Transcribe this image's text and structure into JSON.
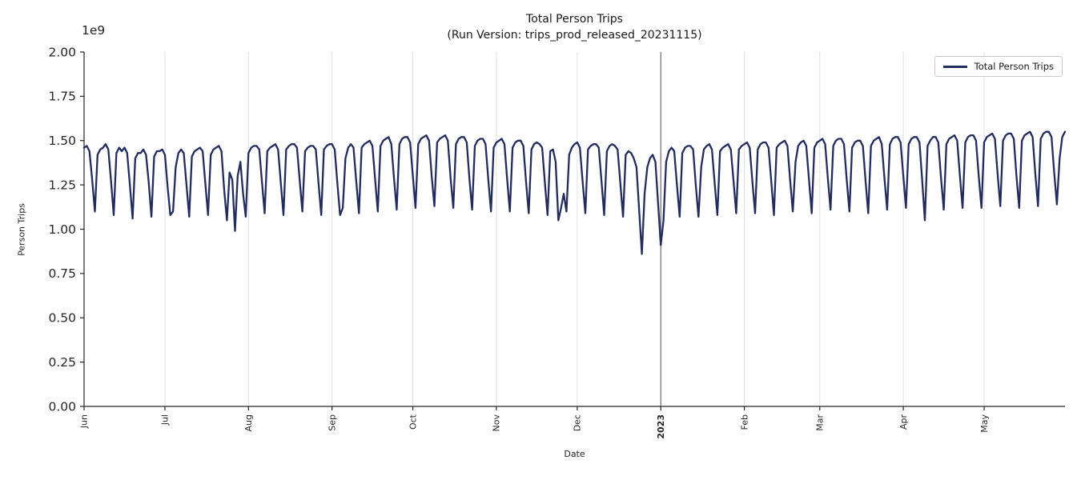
{
  "colors": {
    "line": "#232c5e",
    "grid": "#e0e0e0",
    "year_line": "#4a4a4a",
    "axis": "#262626",
    "legend_border": "#c9c9c9",
    "background": "#ffffff"
  },
  "chart_data": {
    "type": "line",
    "title": "Total Person Trips",
    "subtitle": "(Run Version: trips_prod_released_20231115)",
    "xlabel": "Date",
    "ylabel": "Person Trips",
    "y_scale_offset_label": "1e9",
    "ylim_1e9": [
      0.0,
      2.0
    ],
    "yticks_1e9": [
      0.0,
      0.25,
      0.5,
      0.75,
      1.0,
      1.25,
      1.5,
      1.75,
      2.0
    ],
    "ytick_labels": [
      "0.00",
      "0.25",
      "0.50",
      "0.75",
      "1.00",
      "1.25",
      "1.50",
      "1.75",
      "2.00"
    ],
    "x_start": "2022-06-01",
    "x_unit": "day",
    "grid": "vertical-month-lines",
    "xticks": [
      {
        "label": "Jun",
        "day": 0
      },
      {
        "label": "Jul",
        "day": 30
      },
      {
        "label": "Aug",
        "day": 61
      },
      {
        "label": "Sep",
        "day": 92
      },
      {
        "label": "Oct",
        "day": 122
      },
      {
        "label": "Nov",
        "day": 153
      },
      {
        "label": "Dec",
        "day": 183
      },
      {
        "label": "2023",
        "day": 214,
        "bold": true,
        "year_boundary": true
      },
      {
        "label": "Feb",
        "day": 245
      },
      {
        "label": "Mar",
        "day": 273
      },
      {
        "label": "Apr",
        "day": 304
      },
      {
        "label": "May",
        "day": 334
      }
    ],
    "legend": {
      "position": "upper-right",
      "entries": [
        {
          "label": "Total Person Trips",
          "color": "#232c5e"
        }
      ]
    },
    "series": [
      {
        "name": "Total Person Trips",
        "color": "#232c5e",
        "line_width": 2.3,
        "values_1e9": [
          1.46,
          1.47,
          1.44,
          1.28,
          1.1,
          1.42,
          1.45,
          1.46,
          1.48,
          1.45,
          1.27,
          1.08,
          1.43,
          1.46,
          1.44,
          1.46,
          1.43,
          1.25,
          1.06,
          1.4,
          1.43,
          1.43,
          1.45,
          1.42,
          1.26,
          1.07,
          1.41,
          1.44,
          1.44,
          1.45,
          1.42,
          1.24,
          1.08,
          1.1,
          1.35,
          1.43,
          1.45,
          1.43,
          1.25,
          1.07,
          1.41,
          1.44,
          1.45,
          1.46,
          1.44,
          1.26,
          1.08,
          1.42,
          1.45,
          1.46,
          1.47,
          1.44,
          1.22,
          1.05,
          1.32,
          1.28,
          0.99,
          1.3,
          1.38,
          1.2,
          1.07,
          1.43,
          1.46,
          1.47,
          1.47,
          1.45,
          1.27,
          1.09,
          1.44,
          1.46,
          1.47,
          1.48,
          1.45,
          1.26,
          1.08,
          1.45,
          1.47,
          1.48,
          1.48,
          1.46,
          1.28,
          1.1,
          1.44,
          1.46,
          1.47,
          1.47,
          1.45,
          1.26,
          1.08,
          1.45,
          1.47,
          1.48,
          1.48,
          1.45,
          1.26,
          1.08,
          1.12,
          1.4,
          1.46,
          1.48,
          1.46,
          1.27,
          1.09,
          1.46,
          1.48,
          1.49,
          1.5,
          1.47,
          1.28,
          1.1,
          1.47,
          1.5,
          1.51,
          1.52,
          1.48,
          1.29,
          1.11,
          1.48,
          1.51,
          1.52,
          1.52,
          1.49,
          1.3,
          1.12,
          1.48,
          1.51,
          1.52,
          1.53,
          1.5,
          1.3,
          1.13,
          1.49,
          1.51,
          1.52,
          1.53,
          1.5,
          1.29,
          1.12,
          1.48,
          1.51,
          1.52,
          1.52,
          1.49,
          1.28,
          1.11,
          1.47,
          1.5,
          1.51,
          1.51,
          1.48,
          1.28,
          1.1,
          1.46,
          1.49,
          1.5,
          1.51,
          1.48,
          1.28,
          1.1,
          1.46,
          1.49,
          1.5,
          1.5,
          1.47,
          1.27,
          1.09,
          1.45,
          1.48,
          1.49,
          1.48,
          1.46,
          1.26,
          1.08,
          1.44,
          1.45,
          1.38,
          1.05,
          1.12,
          1.2,
          1.1,
          1.42,
          1.46,
          1.48,
          1.49,
          1.46,
          1.27,
          1.09,
          1.45,
          1.47,
          1.48,
          1.48,
          1.46,
          1.27,
          1.08,
          1.44,
          1.47,
          1.48,
          1.47,
          1.45,
          1.26,
          1.07,
          1.42,
          1.44,
          1.43,
          1.4,
          1.35,
          1.1,
          0.86,
          1.2,
          1.35,
          1.4,
          1.42,
          1.38,
          1.15,
          0.91,
          1.05,
          1.38,
          1.44,
          1.46,
          1.44,
          1.25,
          1.07,
          1.43,
          1.46,
          1.47,
          1.47,
          1.45,
          1.25,
          1.07,
          1.35,
          1.45,
          1.47,
          1.48,
          1.45,
          1.26,
          1.08,
          1.44,
          1.46,
          1.47,
          1.48,
          1.45,
          1.27,
          1.09,
          1.45,
          1.47,
          1.48,
          1.49,
          1.46,
          1.27,
          1.09,
          1.45,
          1.48,
          1.49,
          1.49,
          1.46,
          1.27,
          1.08,
          1.46,
          1.48,
          1.49,
          1.5,
          1.47,
          1.28,
          1.1,
          1.38,
          1.47,
          1.49,
          1.5,
          1.47,
          1.28,
          1.09,
          1.46,
          1.49,
          1.5,
          1.51,
          1.48,
          1.29,
          1.11,
          1.47,
          1.5,
          1.51,
          1.51,
          1.48,
          1.28,
          1.1,
          1.46,
          1.49,
          1.5,
          1.5,
          1.47,
          1.27,
          1.09,
          1.47,
          1.5,
          1.51,
          1.52,
          1.48,
          1.29,
          1.11,
          1.48,
          1.51,
          1.52,
          1.52,
          1.49,
          1.3,
          1.12,
          1.48,
          1.51,
          1.52,
          1.52,
          1.49,
          1.28,
          1.05,
          1.47,
          1.5,
          1.52,
          1.52,
          1.49,
          1.29,
          1.11,
          1.48,
          1.51,
          1.52,
          1.53,
          1.5,
          1.3,
          1.12,
          1.49,
          1.52,
          1.53,
          1.53,
          1.5,
          1.3,
          1.12,
          1.49,
          1.52,
          1.53,
          1.54,
          1.51,
          1.31,
          1.13,
          1.5,
          1.53,
          1.54,
          1.54,
          1.51,
          1.3,
          1.12,
          1.5,
          1.53,
          1.54,
          1.55,
          1.52,
          1.31,
          1.13,
          1.51,
          1.54,
          1.55,
          1.55,
          1.52,
          1.32,
          1.14,
          1.4,
          1.52,
          1.55
        ]
      }
    ]
  }
}
